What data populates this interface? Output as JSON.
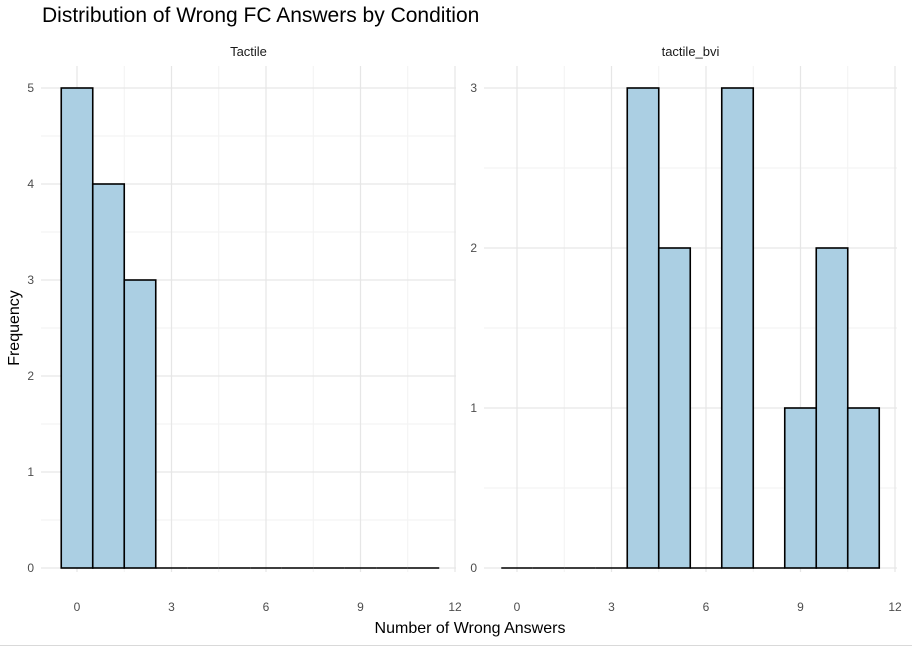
{
  "chart_data": {
    "type": "bar",
    "title": "Distribution of Wrong FC Answers by Condition",
    "xlabel": "Number of Wrong Answers",
    "ylabel": "Frequency",
    "bin_width": 1,
    "bin_centers": [
      0,
      1,
      2,
      3,
      4,
      5,
      6,
      7,
      8,
      9,
      10,
      11
    ],
    "x_ticks": [
      0,
      3,
      6,
      9,
      12
    ],
    "xlim": [
      -0.5,
      12
    ],
    "grid": true,
    "bar_fill": "#abcfe3",
    "bar_stroke": "#000000",
    "panels": [
      {
        "strip_label": "Tactile",
        "values": [
          5,
          4,
          3,
          0,
          0,
          0,
          0,
          0,
          0,
          0,
          0,
          0
        ],
        "ylim": [
          0,
          5
        ],
        "y_ticks": [
          0,
          1,
          2,
          3,
          4,
          5
        ]
      },
      {
        "strip_label": "tactile_bvi",
        "values": [
          0,
          0,
          0,
          0,
          3,
          2,
          0,
          3,
          0,
          1,
          2,
          1
        ],
        "ylim": [
          0,
          3
        ],
        "y_ticks": [
          0,
          1,
          2,
          3
        ]
      }
    ]
  }
}
